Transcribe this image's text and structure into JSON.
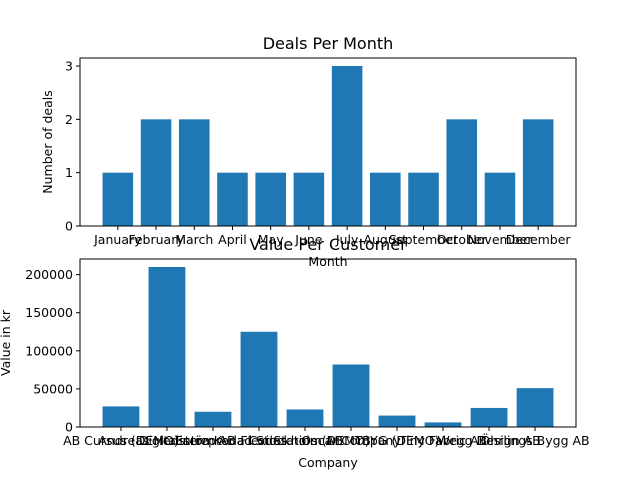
{
  "chart_data": [
    {
      "type": "bar",
      "title": "Deals Per Month",
      "xlabel": "Month",
      "ylabel": "Number of deals",
      "categories": [
        "January",
        "February",
        "March",
        "April",
        "May",
        "June",
        "July",
        "August",
        "September",
        "October",
        "November",
        "December"
      ],
      "values": [
        1,
        2,
        2,
        1,
        1,
        1,
        3,
        1,
        1,
        2,
        1,
        2
      ],
      "ylim": [
        0,
        3.15
      ],
      "yticks": [
        0,
        1,
        2,
        3
      ],
      "ytick_labels": [
        "0",
        "1",
        "2",
        "3"
      ],
      "bar_color": "#1f77b4",
      "grid": false
    },
    {
      "type": "bar",
      "title": "Value Per Customer",
      "xlabel": "Company",
      "ylabel": "Value in kr",
      "categories": [
        "AB Cursus (DEMO)",
        "Andreas Hedström AB",
        "Digitalisera Koda Codes",
        "Entreprenad Stockholm AB",
        "Flexi Station (DEMO)",
        "Oscar Company",
        "TBYG (DEMO)",
        "Tiny Fabric AB",
        "Wegg Design AB",
        "Öhrlings Bygg AB"
      ],
      "values": [
        27000,
        210000,
        20000,
        125000,
        23000,
        82000,
        15000,
        6000,
        25000,
        51000
      ],
      "ylim": [
        0,
        220500
      ],
      "yticks": [
        0,
        50000,
        100000,
        150000,
        200000
      ],
      "ytick_labels": [
        "0",
        "50000",
        "100000",
        "150000",
        "200000"
      ],
      "bar_color": "#1f77b4",
      "grid": false
    }
  ]
}
